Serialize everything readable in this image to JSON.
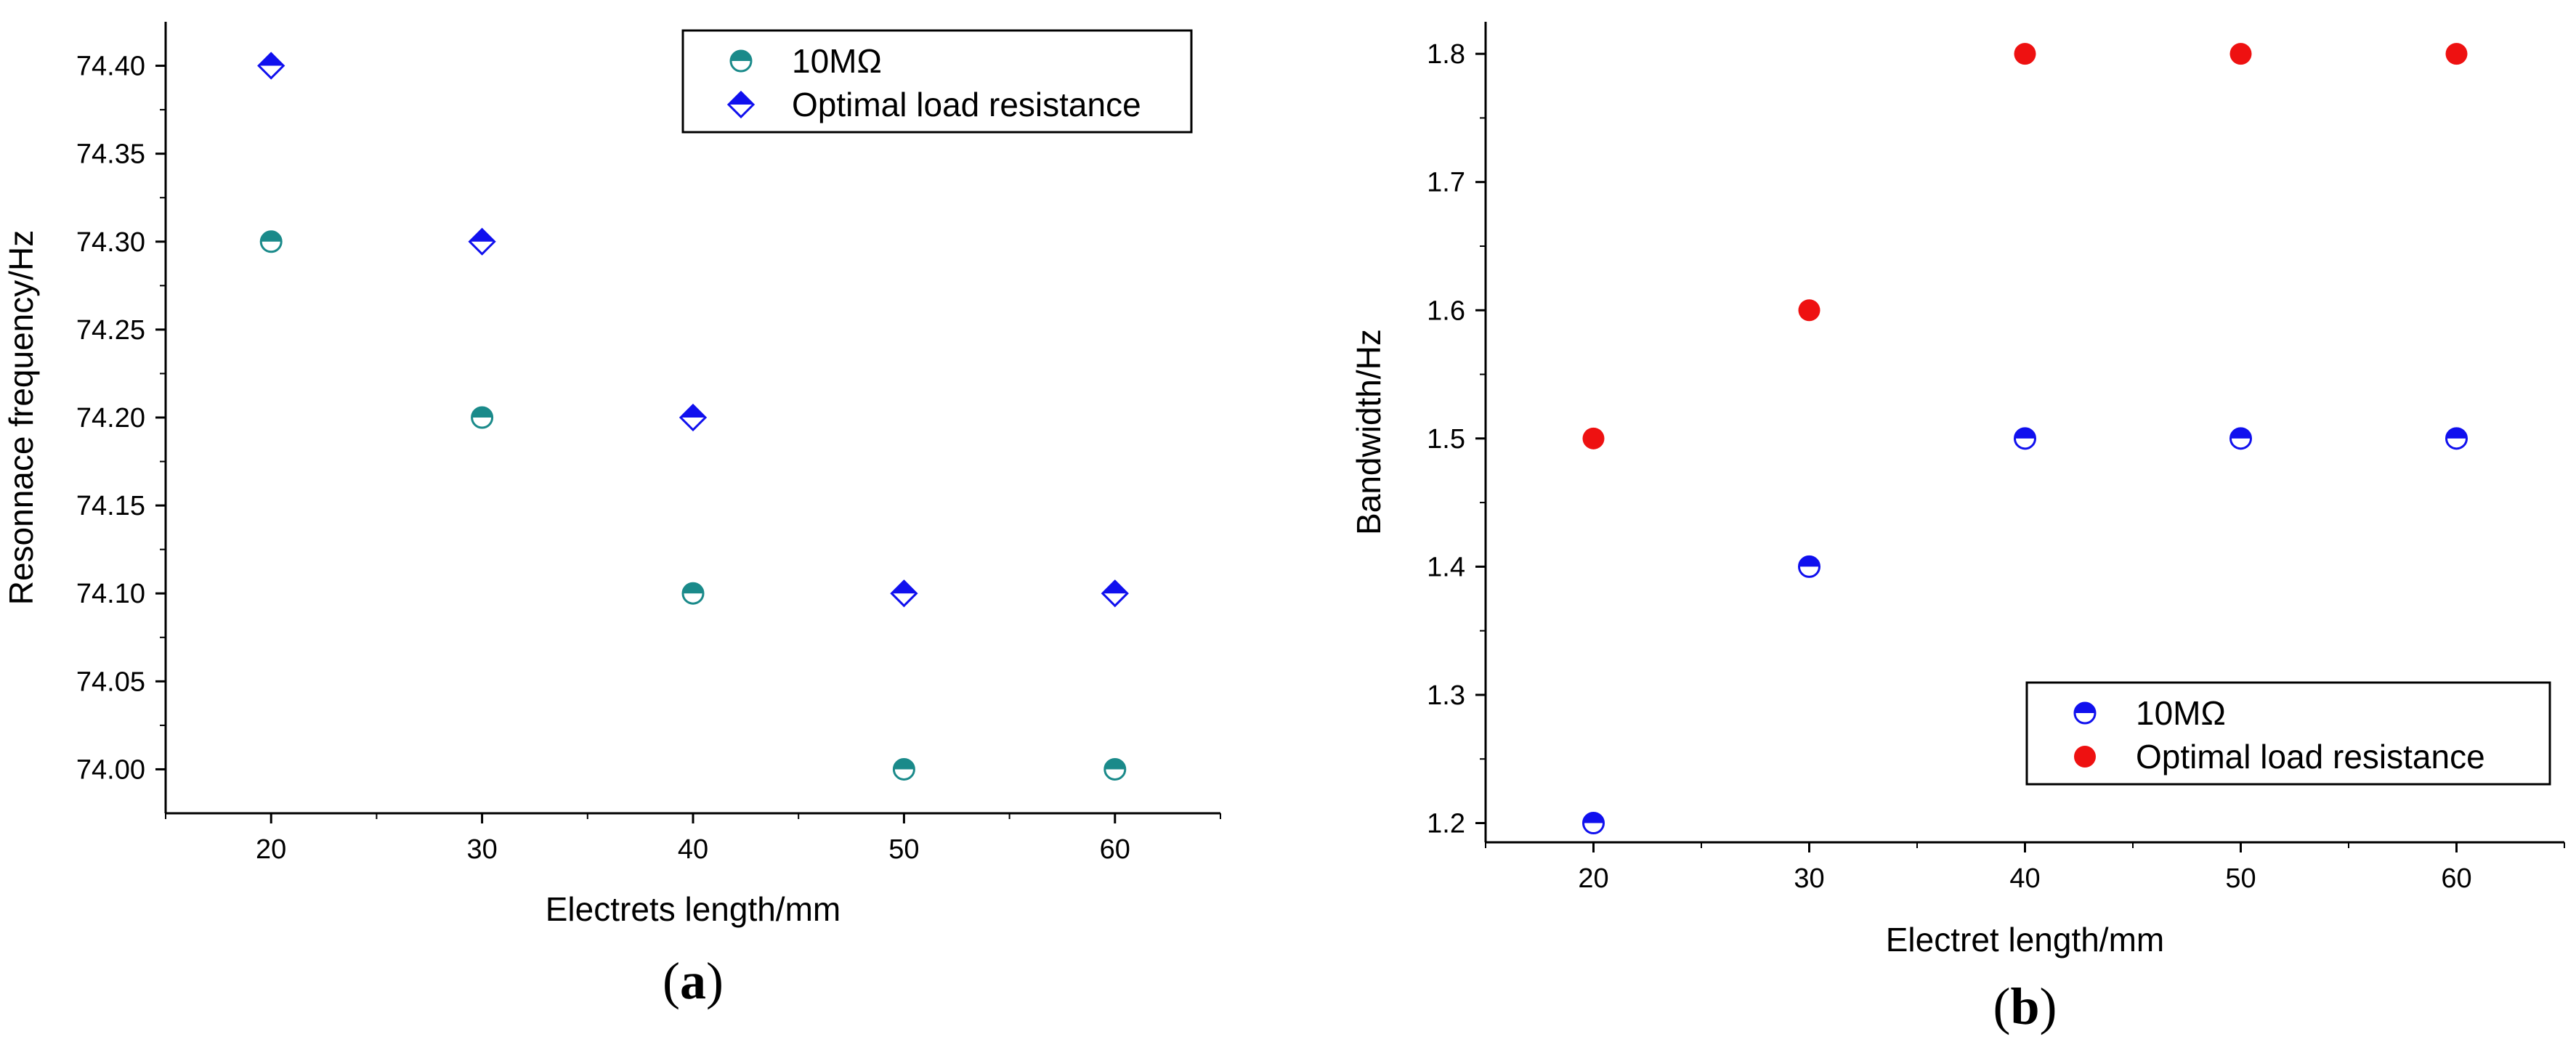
{
  "chart_data": [
    {
      "type": "scatter",
      "panel_label": "a",
      "xlabel": "Electrets length/mm",
      "ylabel": "Resonnace frequency/Hz",
      "xlim": [
        15,
        65
      ],
      "ylim": [
        73.975,
        74.425
      ],
      "x_ticks": [
        20,
        30,
        40,
        50,
        60
      ],
      "x_tick_labels": [
        "20",
        "30",
        "40",
        "50",
        "60"
      ],
      "y_ticks": [
        74.0,
        74.05,
        74.1,
        74.15,
        74.2,
        74.25,
        74.3,
        74.35,
        74.4
      ],
      "y_tick_labels": [
        "74.00",
        "74.05",
        "74.10",
        "74.15",
        "74.20",
        "74.25",
        "74.30",
        "74.35",
        "74.40"
      ],
      "legend_position": "top-right",
      "series": [
        {
          "name": "10MΩ",
          "marker": "half-circle",
          "color": "#1a8a8a",
          "x": [
            20,
            30,
            40,
            50,
            60
          ],
          "values": [
            74.3,
            74.2,
            74.1,
            74.0,
            74.0
          ]
        },
        {
          "name": "Optimal load resistance",
          "marker": "half-diamond",
          "color": "#1010ee",
          "x": [
            20,
            30,
            40,
            50,
            60
          ],
          "values": [
            74.4,
            74.3,
            74.2,
            74.1,
            74.1
          ]
        }
      ]
    },
    {
      "type": "scatter",
      "panel_label": "b",
      "xlabel": "Electret length/mm",
      "ylabel": "Bandwidth/Hz",
      "xlim": [
        15,
        65
      ],
      "ylim": [
        1.185,
        1.825
      ],
      "x_ticks": [
        20,
        30,
        40,
        50,
        60
      ],
      "x_tick_labels": [
        "20",
        "30",
        "40",
        "50",
        "60"
      ],
      "y_ticks": [
        1.2,
        1.3,
        1.4,
        1.5,
        1.6,
        1.7,
        1.8
      ],
      "y_tick_labels": [
        "1.2",
        "1.3",
        "1.4",
        "1.5",
        "1.6",
        "1.7",
        "1.8"
      ],
      "legend_position": "bottom-right",
      "series": [
        {
          "name": "10MΩ",
          "marker": "half-circle",
          "color": "#1010ee",
          "x": [
            20,
            30,
            40,
            50,
            60
          ],
          "values": [
            1.2,
            1.4,
            1.5,
            1.5,
            1.5
          ]
        },
        {
          "name": "Optimal load resistance",
          "marker": "circle",
          "color": "#ee1111",
          "x": [
            20,
            30,
            40,
            50,
            60
          ],
          "values": [
            1.5,
            1.6,
            1.8,
            1.8,
            1.8
          ]
        }
      ]
    }
  ]
}
